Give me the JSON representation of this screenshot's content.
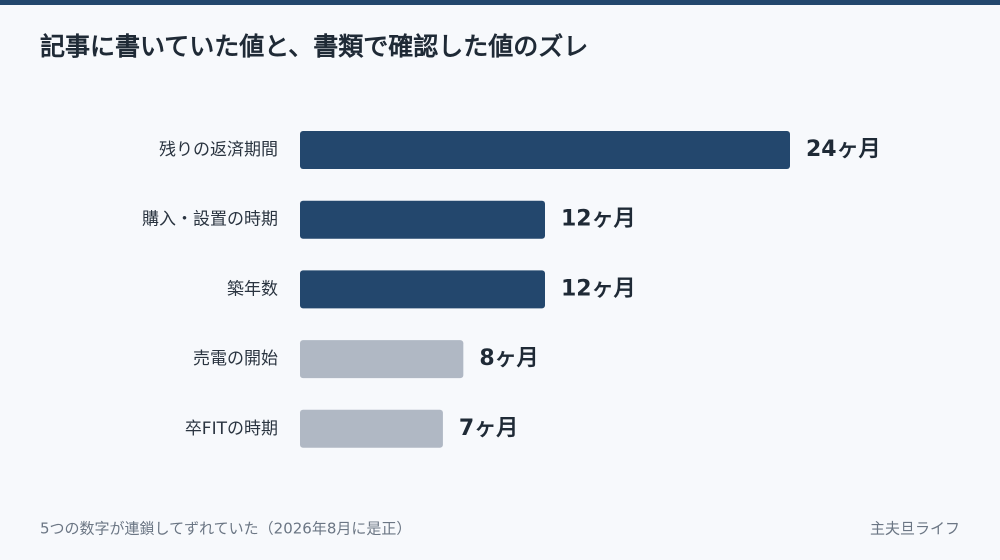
{
  "chart_data": {
    "type": "bar",
    "orientation": "horizontal",
    "title": "記事に書いていた値と、書類で確認した値のズレ",
    "categories": [
      "残りの返済期間",
      "購入・設置の時期",
      "築年数",
      "売電の開始",
      "卒FITの時期"
    ],
    "values": [
      24,
      12,
      12,
      8,
      7
    ],
    "value_labels": [
      "24ヶ月",
      "12ヶ月",
      "12ヶ月",
      "8ヶ月",
      "7ヶ月"
    ],
    "colors": [
      "#23476d",
      "#23476d",
      "#23476d",
      "#b0b8c4",
      "#b0b8c4"
    ],
    "footnote": "5つの数字が連鎖してずれていた（2026年8月に是正）",
    "source": "主夫旦ライフ"
  }
}
